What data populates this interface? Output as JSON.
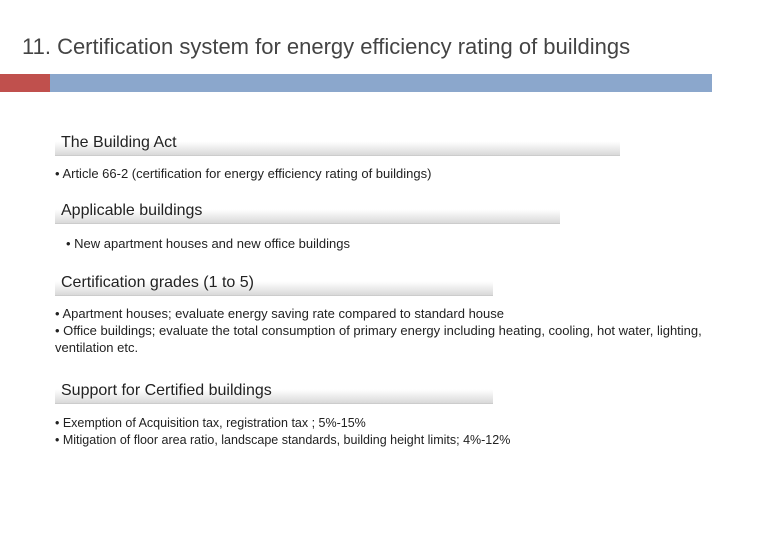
{
  "title": "11. Certification system for energy efficiency rating of buildings",
  "accent": {
    "left_color": "#c0504d",
    "right_color": "#8ba7cc"
  },
  "sections": {
    "s1": {
      "heading": "The Building Act",
      "line1": "• Article 66-2 (certification for energy efficiency rating of buildings)"
    },
    "s2": {
      "heading": "Applicable buildings",
      "line1": "• New apartment houses and new office buildings"
    },
    "s3": {
      "heading": "Certification grades (1 to 5)",
      "line1": "• Apartment houses; evaluate energy saving rate compared to standard house",
      "line2": "• Office buildings; evaluate the total consumption of primary energy including heating, cooling, hot water, lighting, ventilation etc."
    },
    "s4": {
      "heading": "Support for Certified buildings",
      "line1": "• Exemption of Acquisition tax, registration tax ; 5%-15%",
      "line2": "• Mitigation of floor area ratio, landscape standards, building height limits; 4%-12%"
    }
  }
}
